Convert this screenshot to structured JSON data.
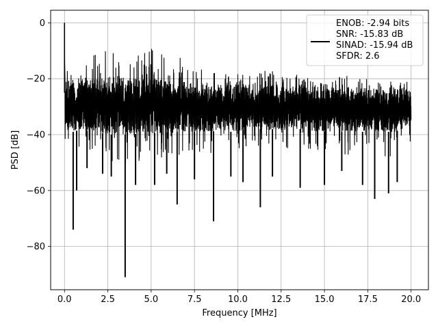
{
  "chart_data": {
    "type": "line",
    "title": "",
    "xlabel": "Frequency [MHz]",
    "ylabel": "PSD [dB]",
    "xlim": [
      -0.8,
      21.0
    ],
    "ylim": [
      -95.5,
      4.5
    ],
    "x_ticks": [
      0.0,
      2.5,
      5.0,
      7.5,
      10.0,
      12.5,
      15.0,
      17.5,
      20.0
    ],
    "x_tick_labels": [
      "0.0",
      "2.5",
      "5.0",
      "7.5",
      "10.0",
      "12.5",
      "15.0",
      "17.5",
      "20.0"
    ],
    "y_ticks": [
      0,
      -20,
      -40,
      -60,
      -80
    ],
    "y_tick_labels": [
      "0",
      "−20",
      "−40",
      "−60",
      "−80"
    ],
    "grid": true,
    "legend_position": "top-right",
    "series_color": "#000000",
    "series": [
      {
        "legend_lines": [
          "ENOB: -2.94 bits",
          "SNR: -15.83 dB",
          "SINAD: -15.94 dB",
          "SFDR: 2.6"
        ],
        "peak": {
          "x": 0.0,
          "y": 0.0
        },
        "envelope": {
          "x": [
            0.0,
            0.5,
            1.0,
            1.5,
            2.0,
            2.5,
            3.0,
            3.5,
            4.0,
            4.5,
            5.0,
            5.5,
            6.0,
            6.5,
            7.0,
            7.5,
            8.0,
            8.5,
            9.0,
            9.5,
            10.0,
            10.5,
            11.0,
            11.5,
            12.0,
            12.5,
            13.0,
            13.5,
            14.0,
            14.5,
            15.0,
            15.5,
            16.0,
            16.5,
            17.0,
            17.5,
            18.0,
            18.5,
            19.0,
            19.5,
            20.0
          ],
          "upper": [
            -12,
            -18,
            -15,
            -12,
            -10,
            -9,
            -9,
            -9,
            -9,
            -10,
            -9,
            -10,
            -10,
            -9,
            -13,
            -15,
            -16,
            -17,
            -18,
            -18,
            -18,
            -19,
            -19,
            -17,
            -17,
            -18,
            -19,
            -18,
            -19,
            -20,
            -20,
            -20,
            -19,
            -18,
            -19,
            -20,
            -21,
            -21,
            -20,
            -21,
            -21
          ],
          "lower": [
            -42,
            -44,
            -45,
            -47,
            -48,
            -49,
            -50,
            -51,
            -50,
            -49,
            -48,
            -50,
            -49,
            -48,
            -48,
            -47,
            -48,
            -47,
            -46,
            -47,
            -47,
            -46,
            -45,
            -45,
            -45,
            -46,
            -45,
            -45,
            -46,
            -46,
            -47,
            -46,
            -47,
            -48,
            -48,
            -48,
            -48,
            -48,
            -48,
            -47,
            -47
          ],
          "body_high": [
            -20,
            -21,
            -20,
            -20,
            -20,
            -19,
            -19,
            -19,
            -20,
            -20,
            -20,
            -20,
            -20,
            -20,
            -21,
            -22,
            -22,
            -23,
            -23,
            -22,
            -22,
            -22,
            -22,
            -22,
            -22,
            -23,
            -23,
            -22,
            -23,
            -24,
            -23,
            -23,
            -23,
            -23,
            -23,
            -24,
            -24,
            -24,
            -23,
            -24,
            -24
          ],
          "body_low": [
            -38,
            -39,
            -38,
            -39,
            -39,
            -40,
            -40,
            -40,
            -40,
            -39,
            -39,
            -40,
            -39,
            -39,
            -39,
            -39,
            -39,
            -39,
            -38,
            -39,
            -39,
            -38,
            -38,
            -38,
            -38,
            -39,
            -38,
            -38,
            -38,
            -39,
            -39,
            -38,
            -39,
            -39,
            -39,
            -39,
            -39,
            -39,
            -39,
            -38,
            -38
          ]
        },
        "spurs": [
          {
            "x": 0.5,
            "y": -74
          },
          {
            "x": 0.7,
            "y": -60
          },
          {
            "x": 1.3,
            "y": -52
          },
          {
            "x": 2.2,
            "y": -54
          },
          {
            "x": 2.7,
            "y": -55
          },
          {
            "x": 3.5,
            "y": -91
          },
          {
            "x": 4.1,
            "y": -58
          },
          {
            "x": 5.2,
            "y": -58
          },
          {
            "x": 5.9,
            "y": -54
          },
          {
            "x": 6.5,
            "y": -65
          },
          {
            "x": 7.5,
            "y": -56
          },
          {
            "x": 8.6,
            "y": -71
          },
          {
            "x": 9.6,
            "y": -55
          },
          {
            "x": 10.3,
            "y": -57
          },
          {
            "x": 11.3,
            "y": -66
          },
          {
            "x": 12.0,
            "y": -55
          },
          {
            "x": 13.6,
            "y": -59
          },
          {
            "x": 15.0,
            "y": -58
          },
          {
            "x": 16.0,
            "y": -53
          },
          {
            "x": 17.2,
            "y": -58
          },
          {
            "x": 17.9,
            "y": -63
          },
          {
            "x": 18.7,
            "y": -61
          },
          {
            "x": 19.2,
            "y": -57
          }
        ]
      }
    ]
  }
}
